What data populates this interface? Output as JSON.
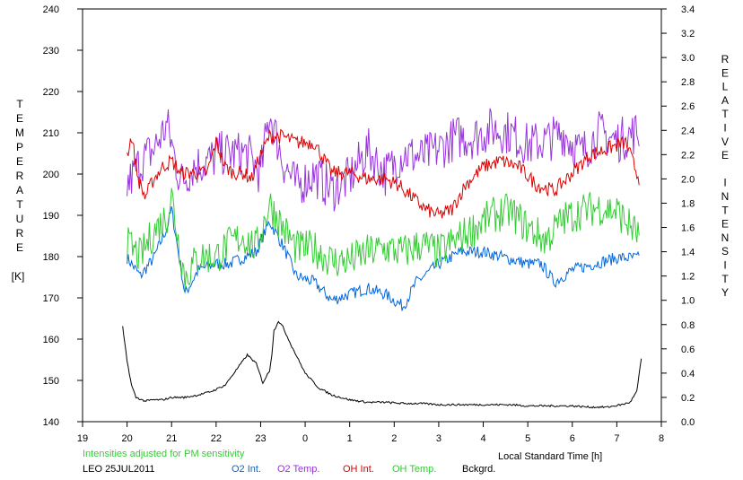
{
  "chart_data": {
    "type": "line",
    "xlabel": "Local Standard Time [h]",
    "x_ticks": [
      "19",
      "20",
      "21",
      "22",
      "23",
      "0",
      "1",
      "2",
      "3",
      "4",
      "5",
      "6",
      "7",
      "8"
    ],
    "xlim": [
      19,
      32
    ],
    "y_left_label_letters": [
      "T",
      "E",
      "M",
      "P",
      "E",
      "R",
      "A",
      "T",
      "U",
      "R",
      "E"
    ],
    "y_left_unit": "[K]",
    "ylim_left": [
      140,
      240
    ],
    "y_left_ticks": [
      "140",
      "150",
      "160",
      "170",
      "180",
      "190",
      "200",
      "210",
      "220",
      "230",
      "240"
    ],
    "y_right_label_letters": [
      "R",
      "E",
      "L",
      "A",
      "T",
      "I",
      "V",
      "E",
      "",
      "I",
      "N",
      "T",
      "E",
      "N",
      "S",
      "I",
      "T",
      "Y"
    ],
    "ylim_right": [
      0.0,
      3.4
    ],
    "y_right_ticks": [
      "0.0",
      "0.2",
      "0.4",
      "0.6",
      "0.8",
      "1.0",
      "1.2",
      "1.4",
      "1.6",
      "1.8",
      "2.0",
      "2.2",
      "2.4",
      "2.6",
      "2.8",
      "3.0",
      "3.2",
      "3.4"
    ],
    "note": "Intensities adjusted for PM sensitivity",
    "station": "LEO 25JUL2011",
    "colors": {
      "o2_int": "#0066dd",
      "o2_temp": "#9933dd",
      "oh_int": "#dd0000",
      "oh_temp": "#33cc33",
      "bckgrd": "#000000",
      "note": "#33cc33"
    },
    "series": [
      {
        "name": "O2 Int.",
        "axis": "right",
        "color": "#0066dd",
        "noise": 0.05,
        "x": [
          20.0,
          20.3,
          20.6,
          20.9,
          21.0,
          21.15,
          21.3,
          21.6,
          22.0,
          22.3,
          22.6,
          22.9,
          23.2,
          23.5,
          23.8,
          24.2,
          24.6,
          25.0,
          25.4,
          25.8,
          26.2,
          26.5,
          27.0,
          27.5,
          28.0,
          28.5,
          29.0,
          29.3,
          29.6,
          30.0,
          30.5,
          31.0,
          31.5
        ],
        "y": [
          1.35,
          1.2,
          1.35,
          1.6,
          1.75,
          1.4,
          1.05,
          1.25,
          1.3,
          1.3,
          1.35,
          1.4,
          1.65,
          1.45,
          1.2,
          1.15,
          1.0,
          1.05,
          1.1,
          1.05,
          0.95,
          1.15,
          1.3,
          1.4,
          1.4,
          1.35,
          1.3,
          1.3,
          1.15,
          1.25,
          1.3,
          1.35,
          1.35
        ]
      },
      {
        "name": "O2 Temp.",
        "axis": "left",
        "color": "#9933dd",
        "noise": 5.5,
        "x": [
          20.0,
          20.3,
          20.6,
          20.9,
          21.2,
          21.5,
          21.8,
          22.1,
          22.4,
          22.7,
          23.0,
          23.2,
          23.5,
          23.8,
          24.2,
          24.6,
          25.0,
          25.4,
          25.8,
          26.2,
          26.6,
          27.0,
          27.4,
          27.8,
          28.2,
          28.6,
          29.0,
          29.4,
          29.8,
          30.2,
          30.6,
          31.0,
          31.4,
          31.5
        ],
        "y": [
          197,
          203,
          206,
          212,
          198,
          202,
          203,
          205,
          205,
          205,
          200,
          215,
          203,
          197,
          200,
          196,
          199,
          206,
          200,
          205,
          204,
          206,
          209,
          209,
          211,
          210,
          207,
          208,
          210,
          205,
          210,
          208,
          210,
          210
        ]
      },
      {
        "name": "OH Int.",
        "axis": "right",
        "color": "#dd0000",
        "noise": 0.06,
        "x": [
          20.0,
          20.1,
          20.25,
          20.4,
          20.6,
          20.8,
          21.0,
          21.2,
          21.5,
          21.8,
          22.0,
          22.2,
          22.4,
          22.6,
          22.8,
          23.0,
          23.2,
          23.5,
          23.8,
          24.2,
          24.6,
          25.0,
          25.4,
          25.8,
          26.1,
          26.4,
          26.7,
          27.0,
          27.3,
          27.6,
          28.0,
          28.4,
          28.8,
          29.2,
          29.6,
          30.0,
          30.4,
          30.8,
          31.2,
          31.5
        ],
        "y": [
          2.2,
          2.35,
          2.0,
          1.85,
          2.0,
          2.1,
          2.15,
          2.05,
          2.05,
          2.05,
          2.3,
          2.1,
          2.05,
          2.05,
          2.0,
          2.2,
          2.35,
          2.35,
          2.3,
          2.3,
          2.05,
          2.05,
          2.0,
          2.0,
          1.95,
          1.85,
          1.75,
          1.7,
          1.75,
          1.95,
          2.1,
          2.15,
          2.1,
          1.95,
          1.9,
          2.05,
          2.2,
          2.25,
          2.3,
          2.0
        ]
      },
      {
        "name": "OH Temp.",
        "axis": "left",
        "color": "#33cc33",
        "noise": 4.5,
        "x": [
          20.0,
          20.3,
          20.6,
          20.9,
          21.0,
          21.15,
          21.3,
          21.6,
          22.0,
          22.3,
          22.6,
          22.9,
          23.2,
          23.5,
          23.8,
          24.2,
          24.6,
          25.0,
          25.4,
          25.8,
          26.2,
          26.6,
          27.0,
          27.4,
          27.8,
          28.2,
          28.6,
          29.0,
          29.4,
          29.8,
          30.2,
          30.6,
          31.0,
          31.5
        ],
        "y": [
          183,
          180,
          186,
          190,
          195,
          184,
          175,
          180,
          180,
          183,
          185,
          182,
          193,
          187,
          182,
          182,
          179,
          179,
          181,
          182,
          181,
          183,
          181,
          184,
          187,
          190,
          191,
          187,
          184,
          189,
          191,
          192,
          191,
          185
        ]
      },
      {
        "name": "Bckgrd.",
        "axis": "right",
        "color": "#000000",
        "noise": 0.008,
        "x": [
          19.9,
          20.0,
          20.1,
          20.2,
          20.4,
          20.6,
          20.8,
          21.0,
          21.3,
          21.6,
          21.9,
          22.2,
          22.4,
          22.6,
          22.7,
          22.9,
          23.05,
          23.2,
          23.25,
          23.3,
          23.4,
          23.5,
          23.7,
          24.0,
          24.3,
          24.6,
          25.0,
          25.4,
          25.8,
          26.2,
          26.6,
          27.0,
          27.4,
          27.8,
          28.2,
          28.6,
          29.0,
          29.5,
          30.0,
          30.4,
          30.8,
          31.1,
          31.3,
          31.45,
          31.55
        ],
        "y": [
          0.78,
          0.5,
          0.3,
          0.2,
          0.17,
          0.18,
          0.18,
          0.2,
          0.2,
          0.22,
          0.25,
          0.3,
          0.4,
          0.5,
          0.55,
          0.48,
          0.32,
          0.42,
          0.55,
          0.75,
          0.83,
          0.78,
          0.62,
          0.4,
          0.28,
          0.22,
          0.18,
          0.16,
          0.16,
          0.15,
          0.15,
          0.14,
          0.14,
          0.14,
          0.14,
          0.14,
          0.13,
          0.13,
          0.13,
          0.12,
          0.12,
          0.14,
          0.16,
          0.25,
          0.52
        ]
      }
    ]
  }
}
